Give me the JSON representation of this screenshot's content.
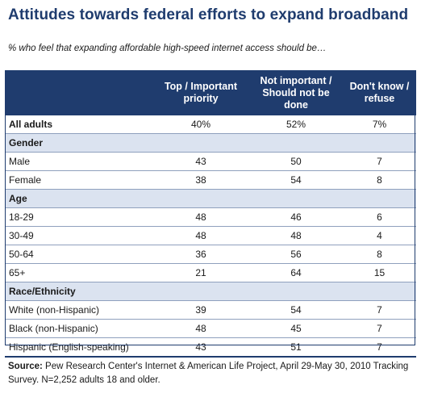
{
  "title": "Attitudes towards federal efforts to expand broadband",
  "subtitle": "% who feel that expanding affordable high-speed internet access should be…",
  "chart_data": {
    "type": "table",
    "columns": [
      "Top / Important priority",
      "Not important / Should not be done",
      "Don't know / refuse"
    ],
    "total": {
      "label": "All adults",
      "values": [
        "40%",
        "52%",
        "7%"
      ]
    },
    "groups": [
      {
        "name": "Gender",
        "rows": [
          {
            "label": "Male",
            "values": [
              "43",
              "50",
              "7"
            ]
          },
          {
            "label": "Female",
            "values": [
              "38",
              "54",
              "8"
            ]
          }
        ]
      },
      {
        "name": "Age",
        "rows": [
          {
            "label": "18-29",
            "values": [
              "48",
              "46",
              "6"
            ]
          },
          {
            "label": "30-49",
            "values": [
              "48",
              "48",
              "4"
            ]
          },
          {
            "label": "50-64",
            "values": [
              "36",
              "56",
              "8"
            ]
          },
          {
            "label": "65+",
            "values": [
              "21",
              "64",
              "15"
            ]
          }
        ]
      },
      {
        "name": "Race/Ethnicity",
        "rows": [
          {
            "label": "White (non-Hispanic)",
            "values": [
              "39",
              "54",
              "7"
            ]
          },
          {
            "label": "Black (non-Hispanic)",
            "values": [
              "48",
              "45",
              "7"
            ]
          },
          {
            "label": "Hispanic (English-speaking)",
            "values": [
              "43",
              "51",
              "7"
            ]
          }
        ]
      }
    ]
  },
  "source": {
    "label": "Source:",
    "text": "Pew Research Center's Internet & American Life Project, April 29-May 30, 2010 Tracking Survey. N=2,252 adults 18 and older."
  },
  "colors": {
    "header_bg": "#1f3c6e",
    "section_bg": "#dbe3f0",
    "title": "#1f3c6e"
  }
}
